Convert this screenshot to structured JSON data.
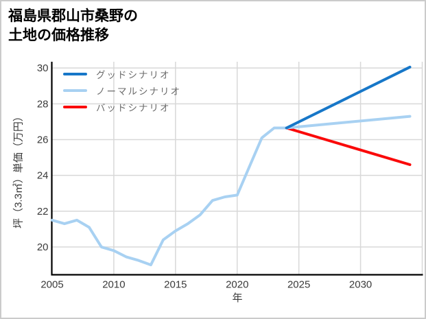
{
  "title": {
    "line1": "福島県郡山市桑野の",
    "line2": "土地の価格推移"
  },
  "legend": {
    "items": [
      {
        "label": "グッドシナリオ",
        "color": "#1777c8"
      },
      {
        "label": "ノーマルシナリオ",
        "color": "#a8d1f2"
      },
      {
        "label": "バッドシナリオ",
        "color": "#fa0a0a"
      }
    ]
  },
  "chart_data": {
    "type": "line",
    "title": "福島県郡山市桑野の 土地の価格推移",
    "xlabel": "年",
    "ylabel": "坪（3.3㎡）単価（万円）",
    "x_ticks": [
      2005,
      2010,
      2015,
      2020,
      2025,
      2030
    ],
    "y_ticks": [
      20,
      22,
      24,
      26,
      28,
      30
    ],
    "x_gridlines": [
      2010,
      2015,
      2020,
      2025,
      2030,
      2035
    ],
    "xlim": [
      2005,
      2035
    ],
    "ylim": [
      18.45,
      30.35
    ],
    "grid": true,
    "legend_position": "upper left",
    "axis_color": "#000000",
    "grid_color": "#d8d8d8",
    "tick_color": "#3a3a3a",
    "series": [
      {
        "name": "",
        "role": "historical",
        "in_legend": false,
        "color": "#a8d1f2",
        "x": [
          2005,
          2006,
          2007,
          2008,
          2009,
          2010,
          2011,
          2012,
          2013,
          2014,
          2015,
          2016,
          2017,
          2018,
          2019,
          2020,
          2021,
          2022,
          2023,
          2024
        ],
        "values": [
          21.5,
          21.3,
          21.5,
          21.1,
          20.0,
          19.8,
          19.45,
          19.25,
          19.0,
          20.4,
          20.9,
          21.3,
          21.8,
          22.6,
          22.8,
          22.9,
          24.5,
          26.1,
          26.65,
          26.65
        ]
      },
      {
        "name": "グッドシナリオ",
        "role": "good-scenario",
        "in_legend": true,
        "color": "#1777c8",
        "x": [
          2024,
          2034
        ],
        "values": [
          26.65,
          30.05
        ]
      },
      {
        "name": "ノーマルシナリオ",
        "role": "normal-scenario",
        "in_legend": true,
        "color": "#a8d1f2",
        "x": [
          2024,
          2034
        ],
        "values": [
          26.65,
          27.3
        ]
      },
      {
        "name": "バッドシナリオ",
        "role": "bad-scenario",
        "in_legend": true,
        "color": "#fa0a0a",
        "x": [
          2024,
          2034
        ],
        "values": [
          26.65,
          24.6
        ]
      }
    ]
  }
}
